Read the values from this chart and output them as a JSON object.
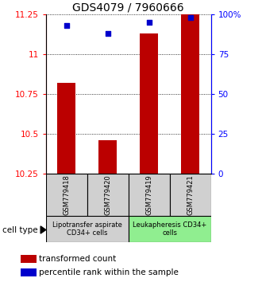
{
  "title": "GDS4079 / 7960666",
  "samples": [
    "GSM779418",
    "GSM779420",
    "GSM779419",
    "GSM779421"
  ],
  "transformed_counts": [
    10.82,
    10.46,
    11.13,
    11.25
  ],
  "percentile_ranks": [
    93,
    88,
    95,
    98
  ],
  "ylim_left": [
    10.25,
    11.25
  ],
  "ylim_right": [
    0,
    100
  ],
  "yticks_left": [
    10.25,
    10.5,
    10.75,
    11.0,
    11.25
  ],
  "ytick_labels_left": [
    "10.25",
    "10.5",
    "10.75",
    "11",
    "11.25"
  ],
  "yticks_right": [
    0,
    25,
    50,
    75,
    100
  ],
  "ytick_labels_right": [
    "0",
    "25",
    "50",
    "75",
    "100%"
  ],
  "bar_color": "#bb0000",
  "dot_color": "#0000cc",
  "bar_bottom": 10.25,
  "group1_label": "Lipotransfer aspirate\nCD34+ cells",
  "group2_label": "Leukapheresis CD34+\ncells",
  "group1_color": "#d0d0d0",
  "group2_color": "#90ee90",
  "cell_type_label": "cell type",
  "legend_bar_label": "transformed count",
  "legend_dot_label": "percentile rank within the sample",
  "title_fontsize": 10,
  "tick_fontsize": 7.5,
  "label_fontsize": 7.5,
  "legend_fontsize": 7.5
}
